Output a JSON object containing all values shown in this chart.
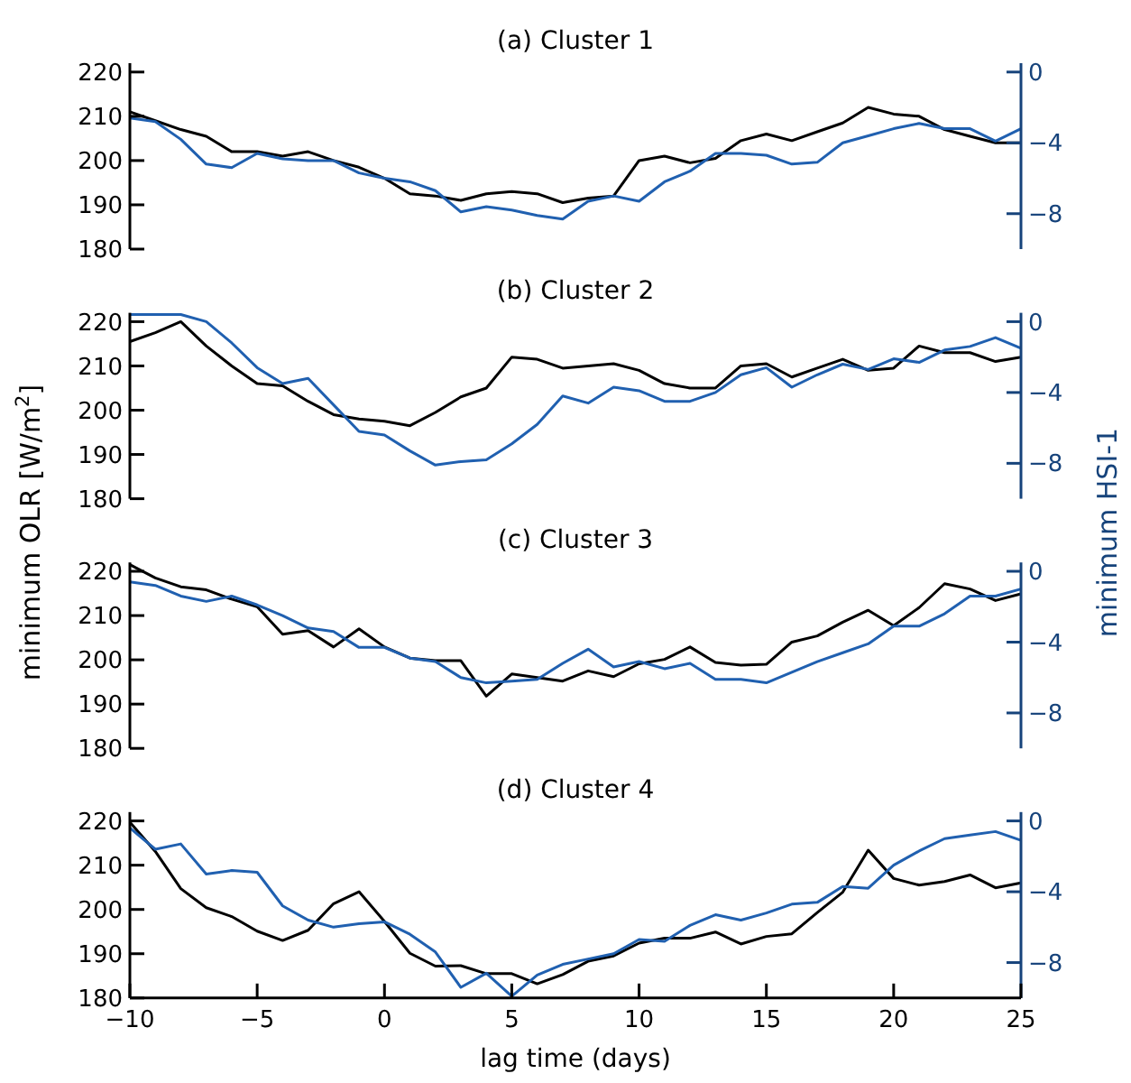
{
  "chart_data": [
    {
      "type": "line",
      "title": "(a) Cluster 1",
      "x": [
        -10,
        -9,
        -8,
        -7,
        -6,
        -5,
        -4,
        -3,
        -2,
        -1,
        0,
        1,
        2,
        3,
        4,
        5,
        6,
        7,
        8,
        9,
        10,
        11,
        12,
        13,
        14,
        15,
        16,
        17,
        18,
        19,
        20,
        21,
        22,
        23,
        24,
        25
      ],
      "xlim": [
        -10,
        25
      ],
      "ylim": [
        180,
        222
      ],
      "yticks": [
        180,
        190,
        200,
        210,
        220
      ],
      "y2lim": [
        -10,
        0.5
      ],
      "y2ticks": [
        -8,
        -4,
        0
      ],
      "tick_labels": "y",
      "grid": false,
      "series": [
        {
          "color": "#000000",
          "values": [
            211,
            209,
            207,
            205.5,
            202,
            202,
            201,
            202,
            200,
            198.5,
            196,
            192.5,
            192,
            191,
            192.5,
            193,
            192.5,
            190.5,
            191.5,
            192,
            200,
            201,
            199.5,
            200.5,
            204.5,
            206,
            204.5,
            206.5,
            208.5,
            212,
            210.5,
            210,
            207,
            205.5,
            204,
            204
          ]
        },
        {
          "color": "#2060b0",
          "axis": "y2",
          "values": [
            -2.6,
            -2.8,
            -3.8,
            -5.2,
            -5.4,
            -4.6,
            -4.9,
            -5.0,
            -5.0,
            -5.7,
            -6.0,
            -6.2,
            -6.7,
            -7.9,
            -7.6,
            -7.8,
            -8.1,
            -8.3,
            -7.3,
            -7.0,
            -7.3,
            -6.2,
            -5.6,
            -4.6,
            -4.6,
            -4.7,
            -5.2,
            -5.1,
            -4.0,
            -3.6,
            -3.2,
            -2.9,
            -3.2,
            -3.2,
            -3.9,
            -3.2
          ]
        }
      ]
    },
    {
      "type": "line",
      "title": "(b) Cluster 2",
      "x": [
        -10,
        -9,
        -8,
        -7,
        -6,
        -5,
        -4,
        -3,
        -2,
        -1,
        0,
        1,
        2,
        3,
        4,
        5,
        6,
        7,
        8,
        9,
        10,
        11,
        12,
        13,
        14,
        15,
        16,
        17,
        18,
        19,
        20,
        21,
        22,
        23,
        24,
        25
      ],
      "xlim": [
        -10,
        25
      ],
      "ylim": [
        180,
        222
      ],
      "yticks": [
        180,
        190,
        200,
        210,
        220
      ],
      "y2lim": [
        -10,
        0.5
      ],
      "y2ticks": [
        -8,
        -4,
        0
      ],
      "tick_labels": "y",
      "grid": false,
      "series": [
        {
          "color": "#000000",
          "values": [
            215.5,
            217.5,
            220,
            214.5,
            210,
            206,
            205.5,
            202,
            199,
            198,
            197.5,
            196.5,
            199.5,
            203,
            205,
            212,
            211.5,
            209.5,
            210,
            210.5,
            209,
            206,
            205,
            205,
            210,
            210.5,
            207.5,
            209.5,
            211.5,
            209,
            209.5,
            214.5,
            213,
            213,
            211,
            212
          ]
        },
        {
          "color": "#2060b0",
          "axis": "y2",
          "values": [
            0.4,
            0.4,
            0.4,
            0,
            -1.2,
            -2.6,
            -3.5,
            -3.2,
            -4.7,
            -6.2,
            -6.4,
            -7.3,
            -8.1,
            -7.9,
            -7.8,
            -6.9,
            -5.8,
            -4.2,
            -4.6,
            -3.7,
            -3.9,
            -4.5,
            -4.5,
            -4.0,
            -3.0,
            -2.6,
            -3.7,
            -3.0,
            -2.4,
            -2.7,
            -2.1,
            -2.3,
            -1.6,
            -1.4,
            -0.9,
            -1.5
          ]
        }
      ]
    },
    {
      "type": "line",
      "title": "(c) Cluster 3",
      "x": [
        -10,
        -9,
        -8,
        -7,
        -6,
        -5,
        -4,
        -3,
        -2,
        -1,
        0,
        1,
        2,
        3,
        4,
        5,
        6,
        7,
        8,
        9,
        10,
        11,
        12,
        13,
        14,
        15,
        16,
        17,
        18,
        19,
        20,
        21,
        22,
        23,
        24,
        25
      ],
      "xlim": [
        -10,
        25
      ],
      "ylim": [
        180,
        222
      ],
      "yticks": [
        180,
        190,
        200,
        210,
        220
      ],
      "y2lim": [
        -10,
        0.5
      ],
      "y2ticks": [
        -8,
        -4,
        0
      ],
      "tick_labels": "y",
      "grid": false,
      "ylabel": "minimum OLR [W/m$^{2}$]",
      "y2label": "minimum HSI-1",
      "series": [
        {
          "color": "#000000",
          "values": [
            221.5,
            218.5,
            216.5,
            215.8,
            213.7,
            212,
            205.8,
            206.6,
            202.9,
            207,
            202.9,
            200.4,
            199.8,
            199.8,
            191.8,
            196.8,
            196,
            195.2,
            197.5,
            196.2,
            199.1,
            200.1,
            202.9,
            199.4,
            198.8,
            199,
            204,
            205.4,
            208.5,
            211.2,
            207.7,
            211.8,
            217.2,
            216,
            213.4,
            214.9
          ]
        },
        {
          "color": "#2060b0",
          "axis": "y2",
          "values": [
            -0.6,
            -0.8,
            -1.4,
            -1.7,
            -1.4,
            -1.9,
            -2.5,
            -3.2,
            -3.4,
            -4.3,
            -4.3,
            -4.9,
            -5.1,
            -6.0,
            -6.3,
            -6.2,
            -6.1,
            -5.2,
            -4.4,
            -5.4,
            -5.1,
            -5.5,
            -5.2,
            -6.1,
            -6.1,
            -6.3,
            -5.7,
            -5.1,
            -4.6,
            -4.1,
            -3.1,
            -3.1,
            -2.4,
            -1.4,
            -1.4,
            -1.0
          ]
        }
      ]
    },
    {
      "type": "line",
      "title": "(d) Cluster 4",
      "x": [
        -10,
        -9,
        -8,
        -7,
        -6,
        -5,
        -4,
        -3,
        -2,
        -1,
        0,
        1,
        2,
        3,
        4,
        5,
        6,
        7,
        8,
        9,
        10,
        11,
        12,
        13,
        14,
        15,
        16,
        17,
        18,
        19,
        20,
        21,
        22,
        23,
        24,
        25
      ],
      "xlim": [
        -10,
        25
      ],
      "xticks": [
        -10,
        -5,
        0,
        5,
        10,
        15,
        20,
        25
      ],
      "xlabel": "lag time (days)",
      "ylim": [
        180,
        222
      ],
      "yticks": [
        180,
        190,
        200,
        210,
        220
      ],
      "y2lim": [
        -10,
        0.5
      ],
      "y2ticks": [
        -8,
        -4,
        0
      ],
      "grid": false,
      "series": [
        {
          "color": "#000000",
          "values": [
            219.7,
            213.1,
            204.7,
            200.4,
            198.4,
            195.1,
            193,
            195.3,
            201.3,
            204,
            197.3,
            190.1,
            187.2,
            187.3,
            185.5,
            185.5,
            183.2,
            185.3,
            188.3,
            189.5,
            192.4,
            193.5,
            193.5,
            194.9,
            192.2,
            193.9,
            194.5,
            199.3,
            203.9,
            213.4,
            207,
            205.5,
            206.3,
            207.8,
            204.9,
            206
          ]
        },
        {
          "color": "#2060b0",
          "axis": "y2",
          "values": [
            -0.4,
            -1.6,
            -1.3,
            -3.0,
            -2.8,
            -2.9,
            -4.8,
            -5.6,
            -6.0,
            -5.8,
            -5.7,
            -6.4,
            -7.4,
            -9.4,
            -8.6,
            -9.9,
            -8.7,
            -8.1,
            -7.8,
            -7.5,
            -6.7,
            -6.8,
            -5.9,
            -5.3,
            -5.6,
            -5.2,
            -4.7,
            -4.6,
            -3.7,
            -3.8,
            -2.5,
            -1.7,
            -1.0,
            -0.8,
            -0.6,
            -1.1
          ]
        }
      ]
    }
  ]
}
